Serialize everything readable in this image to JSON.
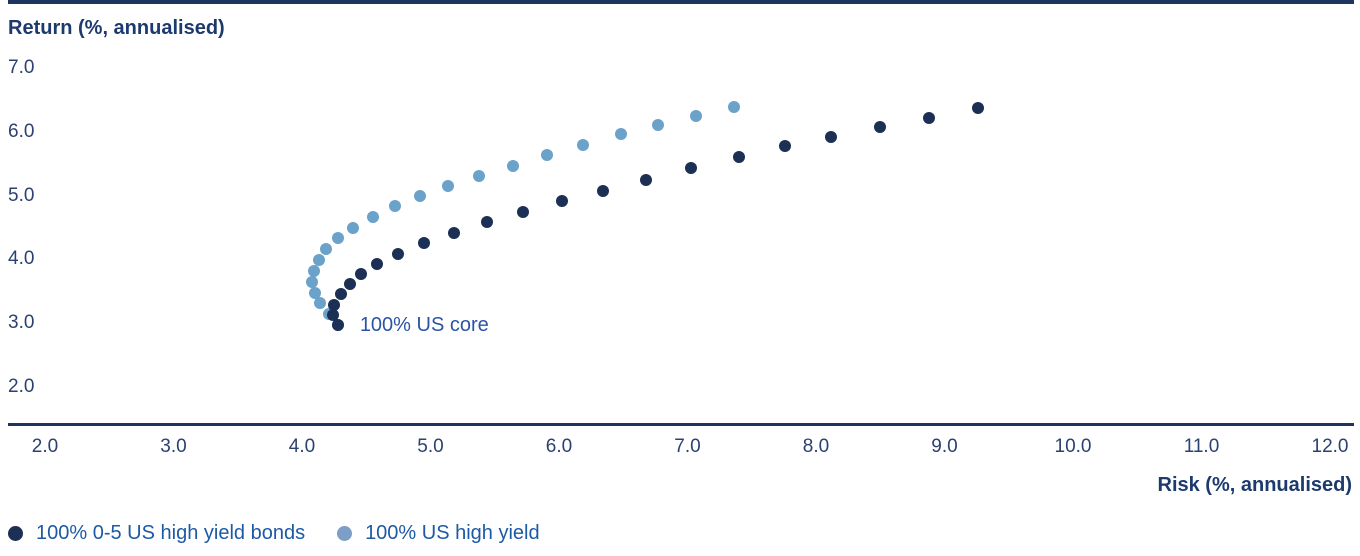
{
  "chart_data": {
    "type": "scatter",
    "title": "",
    "xlabel": "Risk (%, annualised)",
    "ylabel": "Return (%, annualised)",
    "xlim": [
      2.0,
      12.0
    ],
    "ylim": [
      2.0,
      7.0
    ],
    "x_ticks": [
      "2.0",
      "3.0",
      "4.0",
      "5.0",
      "6.0",
      "7.0",
      "8.0",
      "9.0",
      "10.0",
      "11.0",
      "12.0"
    ],
    "y_ticks": [
      "7.0",
      "6.0",
      "5.0",
      "4.0",
      "3.0",
      "2.0"
    ],
    "grid": "off",
    "legend_position": "bottom-left",
    "series": [
      {
        "name": "100% 0-5 US high yield bonds",
        "color": "#1C2F54",
        "legend_dot_color": "#1C2F54",
        "points": [
          [
            4.28,
            2.97
          ],
          [
            4.24,
            3.13
          ],
          [
            4.25,
            3.29
          ],
          [
            4.3,
            3.45
          ],
          [
            4.37,
            3.61
          ],
          [
            4.46,
            3.77
          ],
          [
            4.58,
            3.93
          ],
          [
            4.75,
            4.09
          ],
          [
            4.95,
            4.26
          ],
          [
            5.18,
            4.42
          ],
          [
            5.44,
            4.58
          ],
          [
            5.72,
            4.74
          ],
          [
            6.02,
            4.91
          ],
          [
            6.34,
            5.07
          ],
          [
            6.68,
            5.24
          ],
          [
            7.03,
            5.44
          ],
          [
            7.4,
            5.61
          ],
          [
            7.76,
            5.77
          ],
          [
            8.12,
            5.92
          ],
          [
            8.5,
            6.07
          ],
          [
            8.88,
            6.22
          ],
          [
            9.26,
            6.37
          ]
        ]
      },
      {
        "name": "100% US high yield",
        "color": "#6BA2C9",
        "legend_dot_color": "#7D9EC6",
        "points": [
          [
            4.28,
            2.97
          ],
          [
            4.21,
            3.14
          ],
          [
            4.14,
            3.31
          ],
          [
            4.1,
            3.48
          ],
          [
            4.08,
            3.65
          ],
          [
            4.09,
            3.82
          ],
          [
            4.13,
            3.99
          ],
          [
            4.19,
            4.16
          ],
          [
            4.28,
            4.33
          ],
          [
            4.4,
            4.5
          ],
          [
            4.55,
            4.67
          ],
          [
            4.72,
            4.83
          ],
          [
            4.92,
            4.99
          ],
          [
            5.14,
            5.15
          ],
          [
            5.38,
            5.31
          ],
          [
            5.64,
            5.47
          ],
          [
            5.91,
            5.63
          ],
          [
            6.19,
            5.79
          ],
          [
            6.48,
            5.96
          ],
          [
            6.77,
            6.1
          ],
          [
            7.07,
            6.25
          ],
          [
            7.36,
            6.39
          ]
        ]
      }
    ],
    "annotations": [
      {
        "text": "100% US core",
        "x": 4.45,
        "y": 2.95
      }
    ]
  },
  "colors": {
    "rule": "#1E3560",
    "axis_line": "#1E3560",
    "title_text": "#1D3A6E",
    "tick_text": "#2B4170",
    "annotation_text": "#2B55A4",
    "legend_text": "#1D5AA5",
    "series_dark": "#1C2F54",
    "series_light": "#6BA2C9"
  }
}
